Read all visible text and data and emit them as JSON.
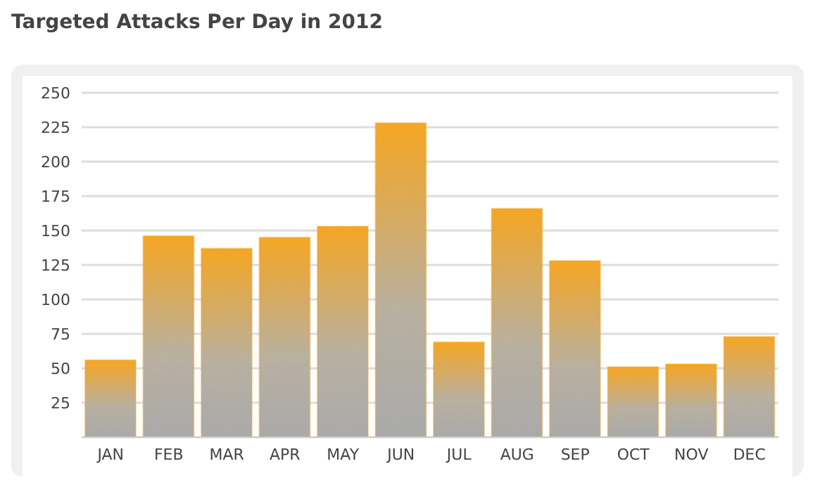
{
  "chart_data": {
    "type": "bar",
    "title": "Targeted Attacks Per Day in 2012",
    "categories": [
      "JAN",
      "FEB",
      "MAR",
      "APR",
      "MAY",
      "JUN",
      "JUL",
      "AUG",
      "SEP",
      "OCT",
      "NOV",
      "DEC"
    ],
    "values": [
      56,
      146,
      137,
      145,
      153,
      228,
      69,
      166,
      128,
      51,
      53,
      73
    ],
    "color": "#f5a623",
    "ylim": [
      0,
      250
    ],
    "yticks": [
      25,
      50,
      75,
      100,
      125,
      150,
      175,
      200,
      225,
      250
    ],
    "grid": "y"
  }
}
